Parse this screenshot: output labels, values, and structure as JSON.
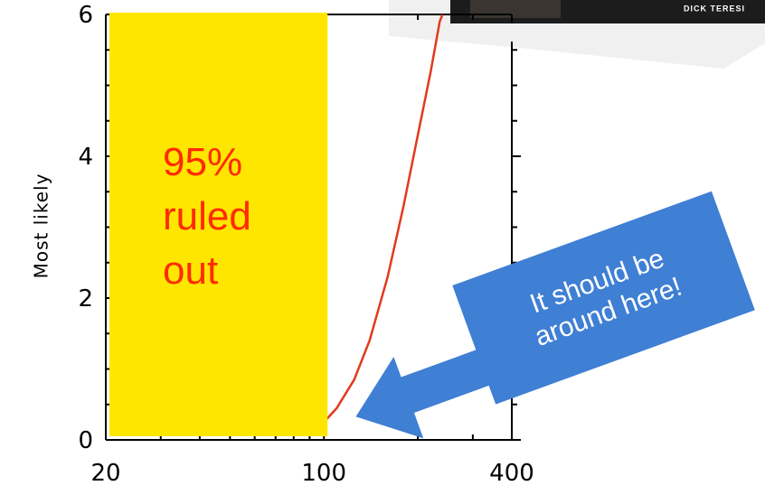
{
  "chart_data": {
    "type": "line",
    "xscale": "log",
    "xlim": [
      20,
      400
    ],
    "ylim": [
      0,
      6
    ],
    "x_ticks": [
      "20",
      "100",
      "400"
    ],
    "y_ticks": [
      "0",
      "2",
      "4",
      "6"
    ],
    "ylabel": "Most likely",
    "xlabel": "",
    "series": [
      {
        "color": "#e03a1e",
        "points": [
          [
            100,
            0.25
          ],
          [
            110,
            0.45
          ],
          [
            125,
            0.85
          ],
          [
            140,
            1.4
          ],
          [
            160,
            2.3
          ],
          [
            180,
            3.3
          ],
          [
            200,
            4.3
          ],
          [
            220,
            5.2
          ],
          [
            235,
            5.9
          ],
          [
            240,
            6.0
          ]
        ]
      }
    ],
    "ruled_out_region": {
      "x_range": [
        20,
        100
      ],
      "label": "95%\nruled\nout",
      "fill": "#ffe600",
      "text_color": "#ff2a00"
    },
    "arrow_callout": {
      "text": "It should be\naround here!",
      "fill": "#3f7fd4",
      "text_color": "#ffffff",
      "points_to": [
        105,
        0.2
      ]
    }
  },
  "book": {
    "author": "DICK TERESI"
  },
  "colors": {
    "axis": "#000000",
    "curve": "#e03a1e",
    "yellow": "#ffe600",
    "blue": "#3f7fd4"
  }
}
